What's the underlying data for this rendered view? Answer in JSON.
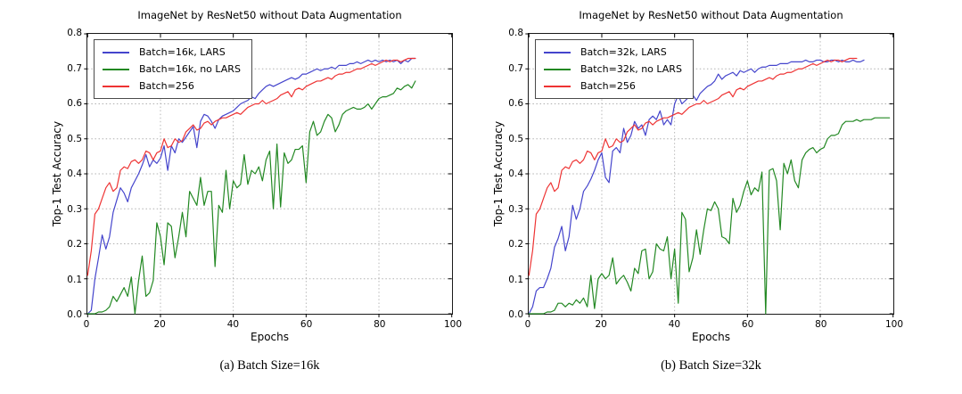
{
  "page": {
    "background": "#ffffff"
  },
  "chart_data": [
    {
      "type": "line",
      "title": "ImageNet by ResNet50 without Data Augmentation",
      "xlabel": "Epochs",
      "ylabel": "Top-1 Test Accuracy",
      "caption": "(a) Batch Size=16k",
      "xlim": [
        0,
        100
      ],
      "ylim": [
        0.0,
        0.8
      ],
      "xticks": [
        0,
        20,
        40,
        60,
        80,
        100
      ],
      "yticks": [
        0.0,
        0.1,
        0.2,
        0.3,
        0.4,
        0.5,
        0.6,
        0.7,
        0.8
      ],
      "grid": true,
      "legend_position": "upper-left",
      "series": [
        {
          "name": "Batch=16k, LARS",
          "color": "#4444cc",
          "x_start": 0,
          "x_step": 1,
          "values": [
            0.0,
            0.01,
            0.1,
            0.16,
            0.225,
            0.185,
            0.22,
            0.29,
            0.325,
            0.36,
            0.345,
            0.32,
            0.36,
            0.38,
            0.4,
            0.425,
            0.455,
            0.42,
            0.44,
            0.43,
            0.445,
            0.48,
            0.41,
            0.48,
            0.46,
            0.5,
            0.49,
            0.505,
            0.52,
            0.535,
            0.475,
            0.55,
            0.57,
            0.565,
            0.55,
            0.53,
            0.555,
            0.565,
            0.57,
            0.575,
            0.58,
            0.59,
            0.6,
            0.605,
            0.61,
            0.62,
            0.615,
            0.63,
            0.64,
            0.65,
            0.655,
            0.65,
            0.655,
            0.66,
            0.665,
            0.67,
            0.675,
            0.67,
            0.675,
            0.685,
            0.685,
            0.69,
            0.695,
            0.7,
            0.695,
            0.7,
            0.7,
            0.705,
            0.7,
            0.71,
            0.71,
            0.71,
            0.715,
            0.715,
            0.72,
            0.715,
            0.72,
            0.725,
            0.72,
            0.725,
            0.72,
            0.725,
            0.72,
            0.725,
            0.72,
            0.725,
            0.715,
            0.725,
            0.72,
            0.73,
            0.73
          ]
        },
        {
          "name": "Batch=16k, no LARS",
          "color": "#228822",
          "x_start": 0,
          "x_step": 1,
          "values": [
            0.0,
            0.0,
            0.0,
            0.005,
            0.005,
            0.01,
            0.02,
            0.05,
            0.035,
            0.055,
            0.075,
            0.05,
            0.105,
            0.0,
            0.095,
            0.165,
            0.05,
            0.06,
            0.095,
            0.26,
            0.22,
            0.14,
            0.26,
            0.25,
            0.16,
            0.22,
            0.29,
            0.22,
            0.35,
            0.33,
            0.31,
            0.39,
            0.31,
            0.35,
            0.35,
            0.135,
            0.31,
            0.29,
            0.41,
            0.3,
            0.38,
            0.36,
            0.37,
            0.455,
            0.37,
            0.41,
            0.4,
            0.42,
            0.38,
            0.44,
            0.465,
            0.3,
            0.485,
            0.305,
            0.46,
            0.43,
            0.44,
            0.47,
            0.47,
            0.48,
            0.375,
            0.52,
            0.55,
            0.51,
            0.52,
            0.55,
            0.57,
            0.56,
            0.52,
            0.54,
            0.57,
            0.58,
            0.585,
            0.59,
            0.585,
            0.585,
            0.59,
            0.6,
            0.585,
            0.6,
            0.615,
            0.62,
            0.62,
            0.625,
            0.63,
            0.645,
            0.64,
            0.65,
            0.655,
            0.645,
            0.665
          ]
        },
        {
          "name": "Batch=256",
          "color": "#ee3333",
          "x_start": 0,
          "x_step": 1,
          "values": [
            0.11,
            0.18,
            0.285,
            0.3,
            0.33,
            0.36,
            0.375,
            0.35,
            0.36,
            0.41,
            0.42,
            0.415,
            0.435,
            0.44,
            0.43,
            0.44,
            0.465,
            0.46,
            0.44,
            0.46,
            0.465,
            0.5,
            0.475,
            0.48,
            0.5,
            0.49,
            0.495,
            0.52,
            0.53,
            0.54,
            0.525,
            0.53,
            0.545,
            0.55,
            0.54,
            0.55,
            0.555,
            0.56,
            0.56,
            0.565,
            0.57,
            0.575,
            0.57,
            0.58,
            0.59,
            0.595,
            0.6,
            0.6,
            0.61,
            0.6,
            0.605,
            0.61,
            0.615,
            0.625,
            0.63,
            0.635,
            0.62,
            0.64,
            0.645,
            0.64,
            0.65,
            0.655,
            0.66,
            0.665,
            0.665,
            0.67,
            0.675,
            0.67,
            0.68,
            0.685,
            0.685,
            0.69,
            0.69,
            0.695,
            0.7,
            0.7,
            0.705,
            0.71,
            0.715,
            0.71,
            0.715,
            0.72,
            0.725,
            0.72,
            0.725,
            0.725,
            0.72,
            0.725,
            0.73,
            0.73,
            0.73
          ]
        }
      ]
    },
    {
      "type": "line",
      "title": "ImageNet by ResNet50 without Data Augmentation",
      "xlabel": "Epochs",
      "ylabel": "Top-1 Test Accuracy",
      "caption": "(b) Batch Size=32k",
      "xlim": [
        0,
        100
      ],
      "ylim": [
        0.0,
        0.8
      ],
      "xticks": [
        0,
        20,
        40,
        60,
        80,
        100
      ],
      "yticks": [
        0.0,
        0.1,
        0.2,
        0.3,
        0.4,
        0.5,
        0.6,
        0.7,
        0.8
      ],
      "grid": true,
      "legend_position": "upper-left",
      "series": [
        {
          "name": "Batch=32k, LARS",
          "color": "#4444cc",
          "x_start": 0,
          "x_step": 1,
          "values": [
            0.0,
            0.02,
            0.065,
            0.075,
            0.075,
            0.1,
            0.13,
            0.19,
            0.215,
            0.25,
            0.18,
            0.22,
            0.31,
            0.27,
            0.3,
            0.35,
            0.365,
            0.385,
            0.41,
            0.44,
            0.46,
            0.39,
            0.375,
            0.465,
            0.475,
            0.46,
            0.53,
            0.49,
            0.51,
            0.55,
            0.53,
            0.54,
            0.51,
            0.555,
            0.565,
            0.555,
            0.58,
            0.54,
            0.555,
            0.54,
            0.6,
            0.625,
            0.6,
            0.61,
            0.62,
            0.625,
            0.61,
            0.63,
            0.64,
            0.65,
            0.655,
            0.665,
            0.685,
            0.67,
            0.68,
            0.685,
            0.69,
            0.68,
            0.695,
            0.69,
            0.695,
            0.7,
            0.69,
            0.7,
            0.705,
            0.705,
            0.71,
            0.71,
            0.71,
            0.715,
            0.715,
            0.715,
            0.72,
            0.72,
            0.72,
            0.72,
            0.725,
            0.72,
            0.72,
            0.725,
            0.725,
            0.72,
            0.72,
            0.725,
            0.725,
            0.72,
            0.725,
            0.72,
            0.72,
            0.725,
            0.72,
            0.72,
            0.725
          ]
        },
        {
          "name": "Batch=32k, no LARS",
          "color": "#228822",
          "x_start": 0,
          "x_step": 1,
          "values": [
            0.0,
            0.0,
            0.0,
            0.0,
            0.0,
            0.005,
            0.005,
            0.01,
            0.03,
            0.03,
            0.02,
            0.03,
            0.025,
            0.04,
            0.03,
            0.045,
            0.02,
            0.11,
            0.015,
            0.1,
            0.115,
            0.1,
            0.11,
            0.16,
            0.085,
            0.1,
            0.11,
            0.09,
            0.065,
            0.13,
            0.115,
            0.18,
            0.185,
            0.1,
            0.12,
            0.2,
            0.185,
            0.18,
            0.22,
            0.1,
            0.185,
            0.03,
            0.29,
            0.27,
            0.12,
            0.16,
            0.24,
            0.17,
            0.24,
            0.3,
            0.295,
            0.32,
            0.3,
            0.22,
            0.215,
            0.2,
            0.33,
            0.29,
            0.31,
            0.35,
            0.38,
            0.34,
            0.36,
            0.35,
            0.405,
            0.0,
            0.41,
            0.415,
            0.38,
            0.24,
            0.43,
            0.4,
            0.44,
            0.38,
            0.36,
            0.44,
            0.46,
            0.47,
            0.475,
            0.46,
            0.47,
            0.475,
            0.5,
            0.51,
            0.51,
            0.515,
            0.54,
            0.55,
            0.55,
            0.55,
            0.555,
            0.55,
            0.555,
            0.555,
            0.555,
            0.56,
            0.56,
            0.56,
            0.56,
            0.56
          ]
        },
        {
          "name": "Batch=256",
          "color": "#ee3333",
          "x_start": 0,
          "x_step": 1,
          "values": [
            0.11,
            0.18,
            0.285,
            0.3,
            0.33,
            0.36,
            0.375,
            0.35,
            0.36,
            0.41,
            0.42,
            0.415,
            0.435,
            0.44,
            0.43,
            0.44,
            0.465,
            0.46,
            0.44,
            0.46,
            0.465,
            0.5,
            0.475,
            0.48,
            0.5,
            0.49,
            0.495,
            0.52,
            0.53,
            0.54,
            0.525,
            0.53,
            0.545,
            0.55,
            0.54,
            0.55,
            0.555,
            0.56,
            0.56,
            0.565,
            0.57,
            0.575,
            0.57,
            0.58,
            0.59,
            0.595,
            0.6,
            0.6,
            0.61,
            0.6,
            0.605,
            0.61,
            0.615,
            0.625,
            0.63,
            0.635,
            0.62,
            0.64,
            0.645,
            0.64,
            0.65,
            0.655,
            0.66,
            0.665,
            0.665,
            0.67,
            0.675,
            0.67,
            0.68,
            0.685,
            0.685,
            0.69,
            0.69,
            0.695,
            0.7,
            0.7,
            0.705,
            0.71,
            0.715,
            0.71,
            0.715,
            0.72,
            0.725,
            0.72,
            0.725,
            0.725,
            0.72,
            0.725,
            0.73,
            0.73,
            0.73
          ]
        }
      ]
    }
  ]
}
